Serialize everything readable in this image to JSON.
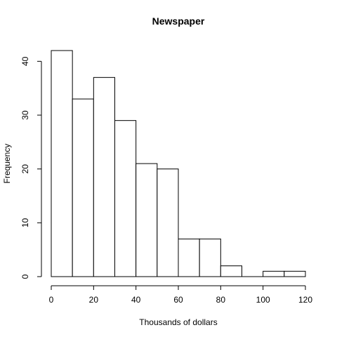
{
  "chart_data": {
    "type": "bar",
    "title": "Newspaper",
    "xlabel": "Thousands of dollars",
    "ylabel": "Frequency",
    "bin_edges": [
      0,
      10,
      20,
      30,
      40,
      50,
      60,
      70,
      80,
      90,
      100,
      110,
      120
    ],
    "values": [
      42,
      33,
      37,
      29,
      21,
      20,
      7,
      7,
      2,
      0,
      1,
      1
    ],
    "xlim": [
      0,
      120
    ],
    "ylim": [
      0,
      42
    ],
    "x_ticks": [
      "0",
      "20",
      "40",
      "60",
      "80",
      "100",
      "120"
    ],
    "y_ticks": [
      "0",
      "10",
      "20",
      "30",
      "40"
    ],
    "grid": false,
    "colors": {
      "bar_fill": "#ffffff",
      "bar_stroke": "#000000",
      "axis": "#000000"
    }
  }
}
